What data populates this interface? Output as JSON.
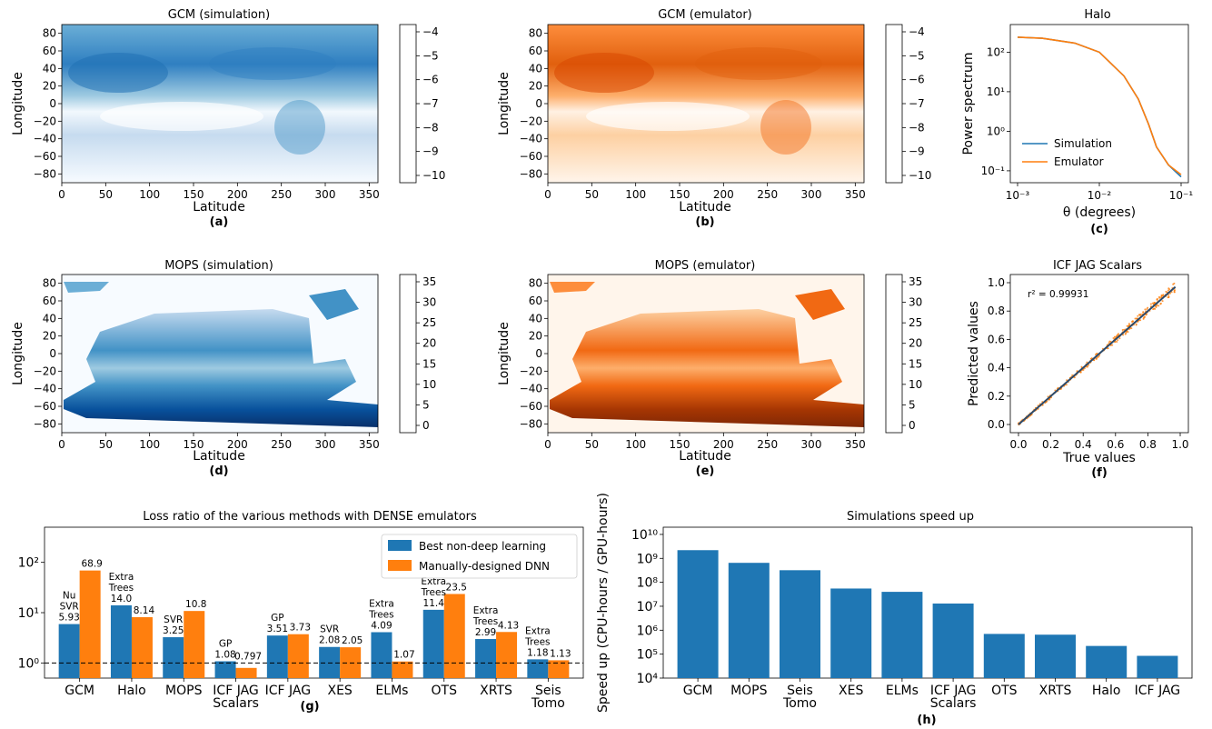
{
  "panels": {
    "a": {
      "title": "GCM (simulation)",
      "xlabel": "Latitude",
      "ylabel": "Longitude",
      "label": "(a)",
      "xticks": [
        "0",
        "50",
        "100",
        "150",
        "200",
        "250",
        "300",
        "350"
      ],
      "yticks": [
        "80",
        "60",
        "40",
        "20",
        "0",
        "−20",
        "−40",
        "−60",
        "−80"
      ],
      "cbar_ticks": [
        "−4",
        "−5",
        "−6",
        "−7",
        "−8",
        "−9",
        "−10"
      ],
      "colormap": "Blues"
    },
    "b": {
      "title": "GCM (emulator)",
      "xlabel": "Latitude",
      "ylabel": "Longitude",
      "label": "(b)",
      "xticks": [
        "0",
        "50",
        "100",
        "150",
        "200",
        "250",
        "300",
        "350"
      ],
      "yticks": [
        "80",
        "60",
        "40",
        "20",
        "0",
        "−20",
        "−40",
        "−60",
        "−80"
      ],
      "cbar_ticks": [
        "−4",
        "−5",
        "−6",
        "−7",
        "−8",
        "−9",
        "−10"
      ],
      "colormap": "Oranges"
    },
    "c": {
      "title": "Halo",
      "xlabel": "θ (degrees)",
      "ylabel": "Power spectrum",
      "label": "(c)",
      "xticks": [
        "10⁻³",
        "10⁻²",
        "10⁻¹"
      ],
      "yticks": [
        "10²",
        "10¹",
        "10⁰",
        "10⁻¹"
      ],
      "legend": [
        "Simulation",
        "Emulator"
      ]
    },
    "d": {
      "title": "MOPS (simulation)",
      "xlabel": "Latitude",
      "ylabel": "Longitude",
      "label": "(d)",
      "xticks": [
        "0",
        "50",
        "100",
        "150",
        "200",
        "250",
        "300",
        "350"
      ],
      "yticks": [
        "80",
        "60",
        "40",
        "20",
        "0",
        "−20",
        "−40",
        "−60",
        "−80"
      ],
      "cbar_ticks": [
        "35",
        "30",
        "25",
        "20",
        "15",
        "10",
        "5",
        "0"
      ],
      "colormap": "Blues"
    },
    "e": {
      "title": "MOPS (emulator)",
      "xlabel": "Latitude",
      "ylabel": "Longitude",
      "label": "(e)",
      "xticks": [
        "0",
        "50",
        "100",
        "150",
        "200",
        "250",
        "300",
        "350"
      ],
      "yticks": [
        "80",
        "60",
        "40",
        "20",
        "0",
        "−20",
        "−40",
        "−60",
        "−80"
      ],
      "cbar_ticks": [
        "35",
        "30",
        "25",
        "20",
        "15",
        "10",
        "5",
        "0"
      ],
      "colormap": "Oranges"
    },
    "f": {
      "title": "ICF JAG Scalars",
      "xlabel": "True values",
      "ylabel": "Predicted values",
      "label": "(f)",
      "annotation": "r² = 0.99931",
      "xticks": [
        "0.0",
        "0.2",
        "0.4",
        "0.6",
        "0.8",
        "1.0"
      ],
      "yticks": [
        "1.0",
        "0.8",
        "0.6",
        "0.4",
        "0.2",
        "0.0"
      ]
    }
  },
  "colors": {
    "blue": "#1f77b4",
    "orange": "#ff7f0e"
  },
  "chart_data": [
    {
      "type": "line",
      "title": "Halo",
      "xlabel": "θ (degrees)",
      "ylabel": "Power spectrum",
      "xscale": "log",
      "yscale": "log",
      "xlim": [
        0.001,
        0.1
      ],
      "ylim": [
        0.05,
        500
      ],
      "x": [
        0.001,
        0.002,
        0.005,
        0.01,
        0.02,
        0.03,
        0.04,
        0.05,
        0.07,
        0.1
      ],
      "series": [
        {
          "name": "Simulation",
          "values": [
            240,
            225,
            170,
            100,
            25,
            6.5,
            1.5,
            0.4,
            0.14,
            0.07
          ]
        },
        {
          "name": "Emulator",
          "values": [
            240,
            225,
            170,
            100,
            25,
            6.5,
            1.5,
            0.4,
            0.14,
            0.08
          ]
        }
      ],
      "legend": "center-left"
    },
    {
      "type": "scatter",
      "title": "ICF JAG Scalars",
      "xlabel": "True values",
      "ylabel": "Predicted values",
      "xlim": [
        0,
        1
      ],
      "ylim": [
        0,
        1
      ],
      "fit_line": [
        [
          0,
          0
        ],
        [
          0.97,
          0.97
        ]
      ]
    },
    {
      "type": "bar",
      "title": "Loss ratio of the various methods with DENSE emulators",
      "categories": [
        "GCM",
        "Halo",
        "MOPS",
        "ICF JAG Scalars",
        "ICF JAG",
        "XES",
        "ELMs",
        "OTS",
        "XRTS",
        "Seis Tomo"
      ],
      "yscale": "log",
      "ylim": [
        0.5,
        500
      ],
      "yticks": [
        "10⁰",
        "10¹",
        "10²"
      ],
      "reference_line": 1,
      "label": "(g)",
      "legend": "top-right",
      "series": [
        {
          "name": "Best non-deep learning",
          "values": [
            5.93,
            14.0,
            3.25,
            1.08,
            3.51,
            2.08,
            4.09,
            11.4,
            2.99,
            1.18
          ],
          "methods": [
            "Nu SVR",
            "Extra Trees",
            "SVR",
            "GP",
            "GP",
            "SVR",
            "Extra Trees",
            "Extra Trees",
            "Extra Trees",
            "Extra Trees"
          ],
          "labels": [
            "5.93",
            "14.0",
            "3.25",
            "1.08",
            "3.51",
            "2.08",
            "4.09",
            "11.4",
            "2.99",
            "1.18"
          ]
        },
        {
          "name": "Manually-designed DNN",
          "values": [
            68.9,
            8.14,
            10.8,
            0.797,
            3.73,
            2.05,
            1.07,
            23.5,
            4.13,
            1.13
          ],
          "labels": [
            "68.9",
            "8.14",
            "10.8",
            "0.797",
            "3.73",
            "2.05",
            "1.07",
            "23.5",
            "4.13",
            "1.13"
          ]
        }
      ]
    },
    {
      "type": "bar",
      "title": "Simulations speed up",
      "ylabel": "Speed up (CPU-hours / GPU-hours)",
      "categories": [
        "GCM",
        "MOPS",
        "Seis Tomo",
        "XES",
        "ELMs",
        "ICF JAG Scalars",
        "OTS",
        "XRTS",
        "Halo",
        "ICF JAG"
      ],
      "values": [
        2200000000,
        650000000,
        320000000,
        55000000,
        40000000,
        13000000,
        700000,
        650000,
        220000,
        85000
      ],
      "yscale": "log",
      "ylim": [
        10000,
        20000000000
      ],
      "yticks": [
        "10⁴",
        "10⁵",
        "10⁶",
        "10⁷",
        "10⁸",
        "10⁹",
        "10¹⁰"
      ],
      "label": "(h)"
    }
  ]
}
